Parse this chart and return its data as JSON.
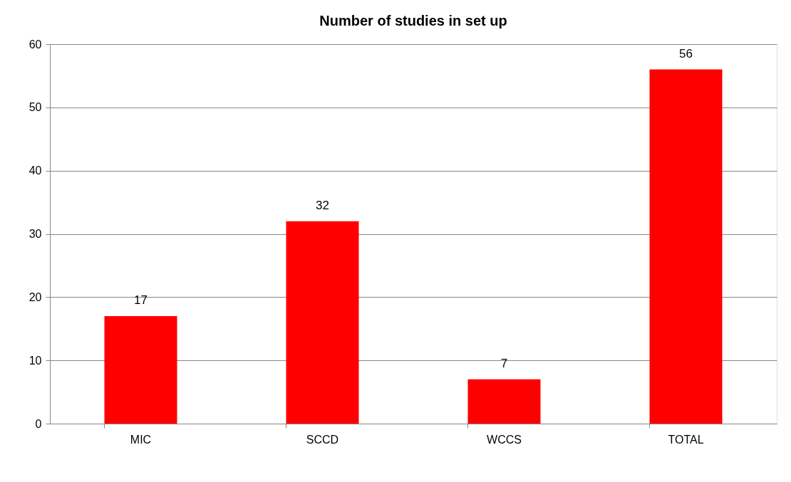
{
  "chart_data": {
    "type": "bar",
    "title": "Number of studies in set up",
    "categories": [
      "MIC",
      "SCCD",
      "WCCS",
      "TOTAL"
    ],
    "values": [
      17,
      32,
      7,
      56
    ],
    "color": "#ff0000",
    "ylim": [
      0,
      60
    ],
    "yticks": [
      0,
      10,
      20,
      30,
      40,
      50,
      60
    ],
    "grid": "y",
    "data_labels": true
  }
}
